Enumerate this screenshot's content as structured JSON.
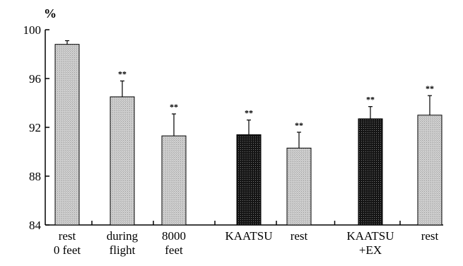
{
  "chart_data": {
    "type": "bar",
    "ylabel": "%",
    "ylim": [
      84,
      100
    ],
    "yticks": [
      84,
      88,
      92,
      96,
      100
    ],
    "categories": [
      [
        "rest",
        "0 feet"
      ],
      [
        "during",
        "flight"
      ],
      [
        "8000",
        "feet"
      ],
      [
        "KAATSU"
      ],
      [
        "rest"
      ],
      [
        "KAATSU",
        "+EX"
      ],
      [
        "rest"
      ]
    ],
    "values": [
      98.8,
      94.5,
      91.3,
      91.4,
      90.3,
      92.7,
      93.0
    ],
    "errors": [
      0.3,
      1.3,
      1.8,
      1.2,
      1.3,
      1.0,
      1.6
    ],
    "annotations": [
      "",
      "**",
      "**",
      "**",
      "**",
      "**",
      "**"
    ],
    "bar_styles": [
      "light",
      "light",
      "light",
      "dark",
      "light",
      "dark",
      "light"
    ],
    "grid": false,
    "legend": "none"
  },
  "colors": {
    "light_bar_fill": "#cfcfcf",
    "light_bar_pattern": "#9c9c9c",
    "dark_bar_fill": "#151515",
    "dark_bar_pattern": "#7a7a7a",
    "axis": "#000000"
  }
}
